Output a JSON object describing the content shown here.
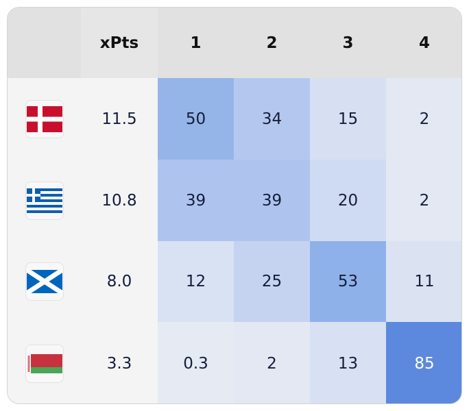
{
  "header": {
    "flag_col": "",
    "xpts": "xPts",
    "positions": [
      "1",
      "2",
      "3",
      "4"
    ]
  },
  "rows": [
    {
      "team_flag": "denmark-flag-icon",
      "xpts": "11.5",
      "cells": [
        {
          "value": "50",
          "bg": "#95b5e8"
        },
        {
          "value": "34",
          "bg": "#b4c8ef"
        },
        {
          "value": "15",
          "bg": "#d6e0f2"
        },
        {
          "value": "2",
          "bg": "#e3e8f3"
        }
      ]
    },
    {
      "team_flag": "greece-flag-icon",
      "xpts": "10.8",
      "cells": [
        {
          "value": "39",
          "bg": "#aec4ee"
        },
        {
          "value": "39",
          "bg": "#aec4ee"
        },
        {
          "value": "20",
          "bg": "#cfdbf2"
        },
        {
          "value": "2",
          "bg": "#e3e8f3"
        }
      ]
    },
    {
      "team_flag": "scotland-flag-icon",
      "xpts": "8.0",
      "cells": [
        {
          "value": "12",
          "bg": "#d9e2f3"
        },
        {
          "value": "25",
          "bg": "#c5d3f1"
        },
        {
          "value": "53",
          "bg": "#8fb1ea"
        },
        {
          "value": "11",
          "bg": "#dbe3f3"
        }
      ]
    },
    {
      "team_flag": "belarus-flag-icon",
      "xpts": "3.3",
      "cells": [
        {
          "value": "0.3",
          "bg": "#e6eaf3"
        },
        {
          "value": "2",
          "bg": "#e3e8f3"
        },
        {
          "value": "13",
          "bg": "#d8e1f3"
        },
        {
          "value": "85",
          "bg": "#5c89de",
          "color": "#ffffff"
        }
      ]
    }
  ],
  "colors": {
    "header_bg": "#e1e1e1",
    "text": "#151d3b",
    "strong_cell": "#5c89de"
  }
}
